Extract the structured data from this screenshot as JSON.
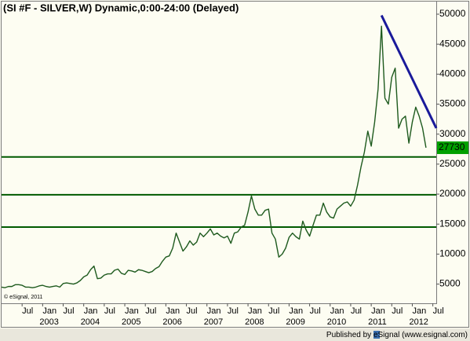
{
  "chart_data": {
    "type": "line",
    "title": "(SI #F - SILVER,W) Dynamic,0:00-24:00 (Delayed)",
    "watermark": "© eSignal, 2011",
    "footer": "Published by eSignal (www.esignal.com)",
    "x": [
      "2002-01",
      "2002-02",
      "2002-03",
      "2002-04",
      "2002-05",
      "2002-06",
      "2002-07",
      "2002-08",
      "2002-09",
      "2002-10",
      "2002-11",
      "2002-12",
      "2003-01",
      "2003-02",
      "2003-03",
      "2003-04",
      "2003-05",
      "2003-06",
      "2003-07",
      "2003-08",
      "2003-09",
      "2003-10",
      "2003-11",
      "2003-12",
      "2004-01",
      "2004-02",
      "2004-03",
      "2004-04",
      "2004-05",
      "2004-06",
      "2004-07",
      "2004-08",
      "2004-09",
      "2004-10",
      "2004-11",
      "2004-12",
      "2005-01",
      "2005-02",
      "2005-03",
      "2005-04",
      "2005-05",
      "2005-06",
      "2005-07",
      "2005-08",
      "2005-09",
      "2005-10",
      "2005-11",
      "2005-12",
      "2006-01",
      "2006-02",
      "2006-03",
      "2006-04",
      "2006-05",
      "2006-06",
      "2006-07",
      "2006-08",
      "2006-09",
      "2006-10",
      "2006-11",
      "2006-12",
      "2007-01",
      "2007-02",
      "2007-03",
      "2007-04",
      "2007-05",
      "2007-06",
      "2007-07",
      "2007-08",
      "2007-09",
      "2007-10",
      "2007-11",
      "2007-12",
      "2008-01",
      "2008-02",
      "2008-03",
      "2008-04",
      "2008-05",
      "2008-06",
      "2008-07",
      "2008-08",
      "2008-09",
      "2008-10",
      "2008-11",
      "2008-12",
      "2009-01",
      "2009-02",
      "2009-03",
      "2009-04",
      "2009-05",
      "2009-06",
      "2009-07",
      "2009-08",
      "2009-09",
      "2009-10",
      "2009-11",
      "2009-12",
      "2010-01",
      "2010-02",
      "2010-03",
      "2010-04",
      "2010-05",
      "2010-06",
      "2010-07",
      "2010-08",
      "2010-09",
      "2010-10",
      "2010-11",
      "2010-12",
      "2011-01",
      "2011-02",
      "2011-03",
      "2011-04",
      "2011-05",
      "2011-06",
      "2011-07",
      "2011-08",
      "2011-09",
      "2011-10",
      "2011-11",
      "2011-12",
      "2012-01",
      "2012-02",
      "2012-03",
      "2012-04",
      "2012-05"
    ],
    "series": [
      {
        "name": "SILVER",
        "color": "#1e5a1e",
        "values": [
          4500,
          4400,
          4600,
          4600,
          4900,
          4900,
          4800,
          4500,
          4500,
          4400,
          4500,
          4700,
          4800,
          4600,
          4500,
          4600,
          4700,
          4500,
          5100,
          5200,
          5100,
          5000,
          5200,
          5600,
          6200,
          6500,
          7400,
          8000,
          5900,
          6000,
          6500,
          6700,
          6700,
          7300,
          7500,
          6800,
          6600,
          7300,
          7200,
          7000,
          7400,
          7300,
          7100,
          6900,
          7100,
          7600,
          7900,
          8800,
          9500,
          9700,
          11000,
          13500,
          12000,
          10500,
          11200,
          12200,
          11500,
          12000,
          13500,
          12900,
          13500,
          14200,
          13200,
          13500,
          13000,
          12700,
          13000,
          11800,
          13500,
          13700,
          14500,
          14800,
          17000,
          19700,
          17500,
          16500,
          16500,
          17300,
          17500,
          13500,
          12500,
          9500,
          10000,
          11000,
          12800,
          13500,
          12900,
          12500,
          15500,
          14000,
          13000,
          14800,
          16500,
          16500,
          18500,
          17000,
          16200,
          16000,
          17500,
          18000,
          18500,
          18700,
          18000,
          19000,
          21500,
          24500,
          27000,
          30500,
          28000,
          32000,
          37500,
          48000,
          36000,
          35000,
          39500,
          41000,
          31000,
          32500,
          33000,
          28500,
          32000,
          34500,
          33000,
          31000,
          27730
        ]
      }
    ],
    "last_value_color": "#00a000",
    "horizontal_lines": {
      "color": "#005a00",
      "values": [
        26200,
        19900,
        14500
      ]
    },
    "trendline": {
      "color": "#1a1a9a",
      "start": {
        "x": "2011-04",
        "y": 49800
      },
      "end": {
        "x": "2012-08",
        "y": 31000
      }
    },
    "xlim": [
      "2002-01",
      "2012-08"
    ],
    "ylim": [
      1800,
      52100
    ],
    "yticks": [
      5000,
      10000,
      15000,
      20000,
      25000,
      30000,
      35000,
      40000,
      45000,
      50000
    ],
    "xticks": [
      {
        "value": "2002-07",
        "label": "Jul"
      },
      {
        "value": "2003-01",
        "label": "Jan"
      },
      {
        "value": "2003-07",
        "label": "Jul"
      },
      {
        "value": "2004-01",
        "label": "Jan"
      },
      {
        "value": "2004-07",
        "label": "Jul"
      },
      {
        "value": "2005-01",
        "label": "Jan"
      },
      {
        "value": "2005-07",
        "label": "Jul"
      },
      {
        "value": "2006-01",
        "label": "Jan"
      },
      {
        "value": "2006-07",
        "label": "Jul"
      },
      {
        "value": "2007-01",
        "label": "Jan"
      },
      {
        "value": "2007-07",
        "label": "Jul"
      },
      {
        "value": "2008-01",
        "label": "Jan"
      },
      {
        "value": "2008-07",
        "label": "Jul"
      },
      {
        "value": "2009-01",
        "label": "Jan"
      },
      {
        "value": "2009-07",
        "label": "Jul"
      },
      {
        "value": "2010-01",
        "label": "Jan"
      },
      {
        "value": "2010-07",
        "label": "Jul"
      },
      {
        "value": "2011-01",
        "label": "Jan"
      },
      {
        "value": "2011-07",
        "label": "Jul"
      },
      {
        "value": "2012-01",
        "label": "Jan"
      },
      {
        "value": "2012-07",
        "label": "Jul"
      }
    ],
    "year_labels": [
      {
        "value": "2003-01",
        "label": "2003"
      },
      {
        "value": "2004-01",
        "label": "2004"
      },
      {
        "value": "2005-01",
        "label": "2005"
      },
      {
        "value": "2006-01",
        "label": "2006"
      },
      {
        "value": "2007-01",
        "label": "2007"
      },
      {
        "value": "2008-01",
        "label": "2008"
      },
      {
        "value": "2009-01",
        "label": "2009"
      },
      {
        "value": "2010-01",
        "label": "2010"
      },
      {
        "value": "2011-01",
        "label": "2011"
      },
      {
        "value": "2012-01",
        "label": "2012"
      }
    ]
  }
}
